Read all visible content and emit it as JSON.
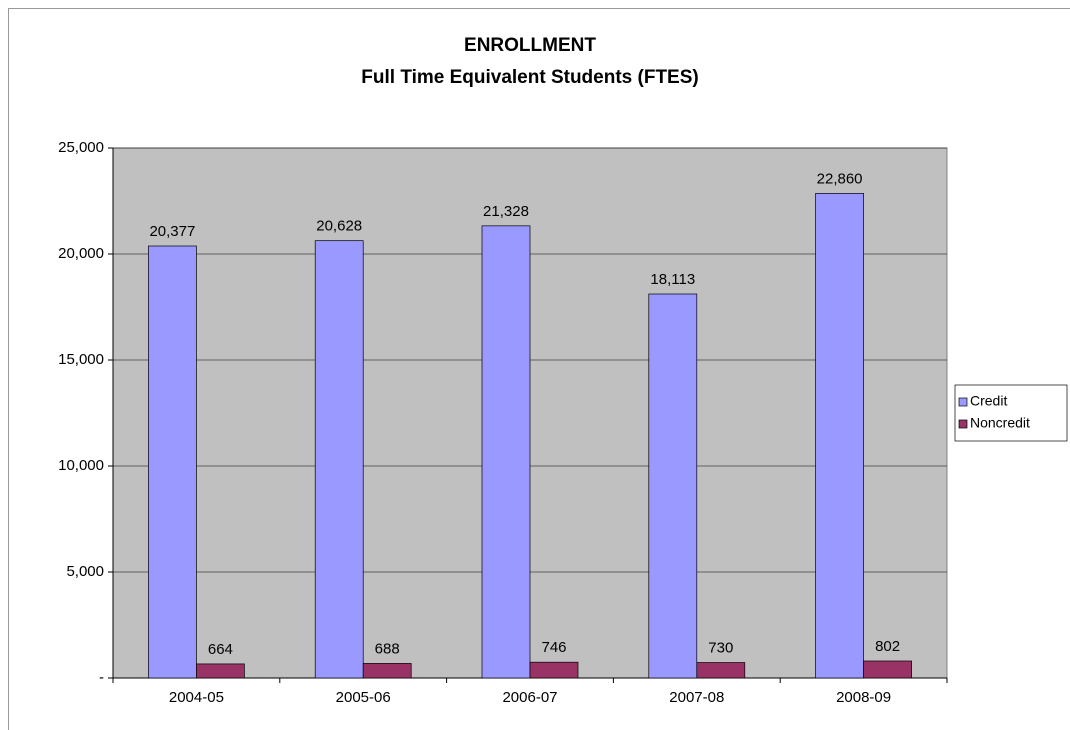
{
  "chart_data": {
    "type": "bar",
    "title": "ENROLLMENT",
    "subtitle": "Full Time Equivalent Students (FTES)",
    "categories": [
      "2004-05",
      "2005-06",
      "2006-07",
      "2007-08",
      "2008-09"
    ],
    "series": [
      {
        "name": "Credit",
        "color": "#9999ff",
        "values": [
          20377,
          20628,
          21328,
          18113,
          22860
        ],
        "value_labels": [
          "20,377",
          "20,628",
          "21,328",
          "18,113",
          "22,860"
        ]
      },
      {
        "name": "Noncredit",
        "color": "#993366",
        "values": [
          664,
          688,
          746,
          730,
          802
        ]
      }
    ],
    "ylim": [
      0,
      25000
    ],
    "yticks": [
      {
        "value": 0,
        "label": "-"
      },
      {
        "value": 5000,
        "label": "5,000"
      },
      {
        "value": 10000,
        "label": "10,000"
      },
      {
        "value": 15000,
        "label": "15,000"
      },
      {
        "value": 20000,
        "label": "20,000"
      },
      {
        "value": 25000,
        "label": "25,000"
      }
    ],
    "grid": true,
    "plot_background": "#c0c0c0",
    "legend": "right"
  }
}
